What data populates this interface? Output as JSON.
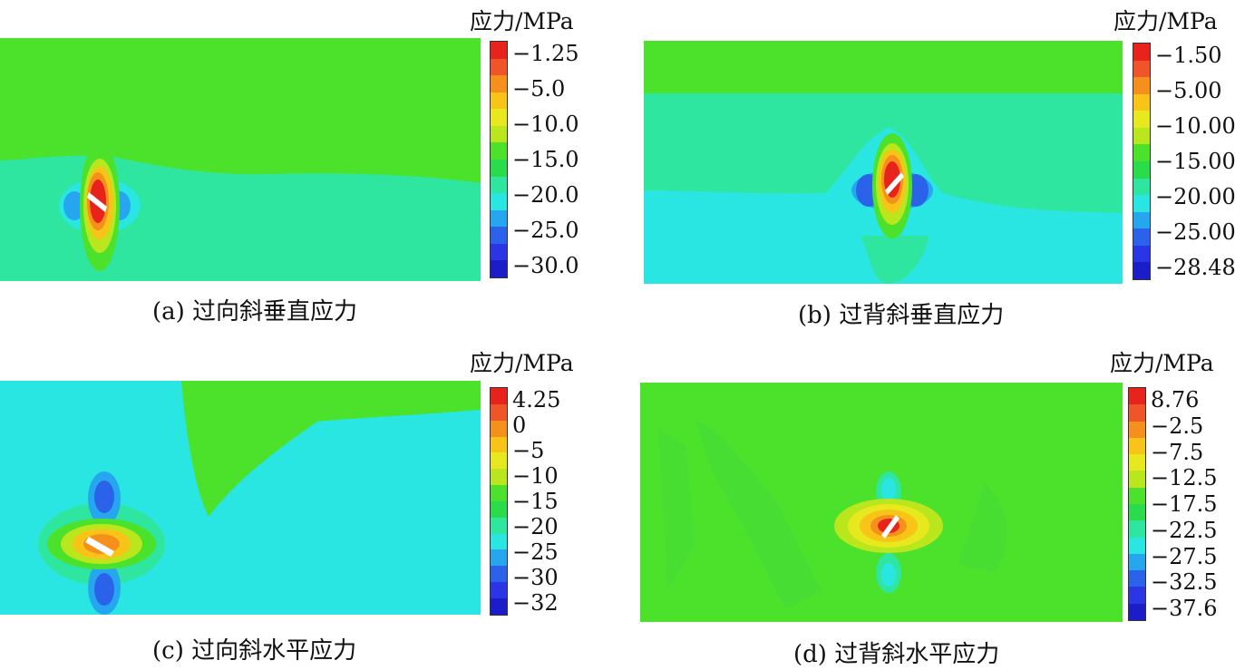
{
  "panels": [
    {
      "id": "a",
      "unit_label": "应力/MPa",
      "caption": "(a) 过向斜垂直应力",
      "legend_ticks": [
        "−1.25",
        "−5.0",
        "−10.0",
        "−15.0",
        "−20.0",
        "−25.0",
        "−30.0"
      ],
      "legend_colors": [
        "#e8231b",
        "#f0552a",
        "#f5901c",
        "#f8c418",
        "#e7e91e",
        "#b9e61d",
        "#4ce22c",
        "#2bdc4a",
        "#2fe6a0",
        "#29e6e2",
        "#27a6f0",
        "#2a62ea",
        "#2a36e6",
        "#1c1cc8"
      ]
    },
    {
      "id": "b",
      "unit_label": "应力/MPa",
      "caption": "(b) 过背斜垂直应力",
      "legend_ticks": [
        "−1.50",
        "−5.00",
        "−10.00",
        "−15.00",
        "−20.00",
        "−25.00",
        "−28.48"
      ],
      "legend_colors": [
        "#e8231b",
        "#f0552a",
        "#f5901c",
        "#f8c418",
        "#e7e91e",
        "#b9e61d",
        "#4ce22c",
        "#2bdc4a",
        "#2fe6a0",
        "#29e6e2",
        "#27a6f0",
        "#2a62ea",
        "#2a36e6",
        "#1c1cc8"
      ]
    },
    {
      "id": "c",
      "unit_label": "应力/MPa",
      "caption": "(c) 过向斜水平应力",
      "legend_ticks": [
        "4.25",
        "0",
        "−5",
        "−10",
        "−15",
        "−20",
        "−25",
        "−30",
        "−32"
      ],
      "legend_colors": [
        "#e8231b",
        "#f0552a",
        "#f5901c",
        "#f8c418",
        "#e7e91e",
        "#b9e61d",
        "#4ce22c",
        "#2bdc4a",
        "#2fe6a0",
        "#29e6e2",
        "#27a6f0",
        "#2a62ea",
        "#2a36e6",
        "#1c1cc8"
      ]
    },
    {
      "id": "d",
      "unit_label": "应力/MPa",
      "caption": "(d) 过背斜水平应力",
      "legend_ticks": [
        "8.76",
        "−2.5",
        "−7.5",
        "−12.5",
        "−17.5",
        "−22.5",
        "−27.5",
        "−32.5",
        "−37.6"
      ],
      "legend_colors": [
        "#e8231b",
        "#f0552a",
        "#f5901c",
        "#f8c418",
        "#e7e91e",
        "#b9e61d",
        "#4ce22c",
        "#2bdc4a",
        "#2fe6a0",
        "#29e6e2",
        "#27a6f0",
        "#2a62ea",
        "#2a36e6",
        "#1c1cc8"
      ]
    }
  ]
}
